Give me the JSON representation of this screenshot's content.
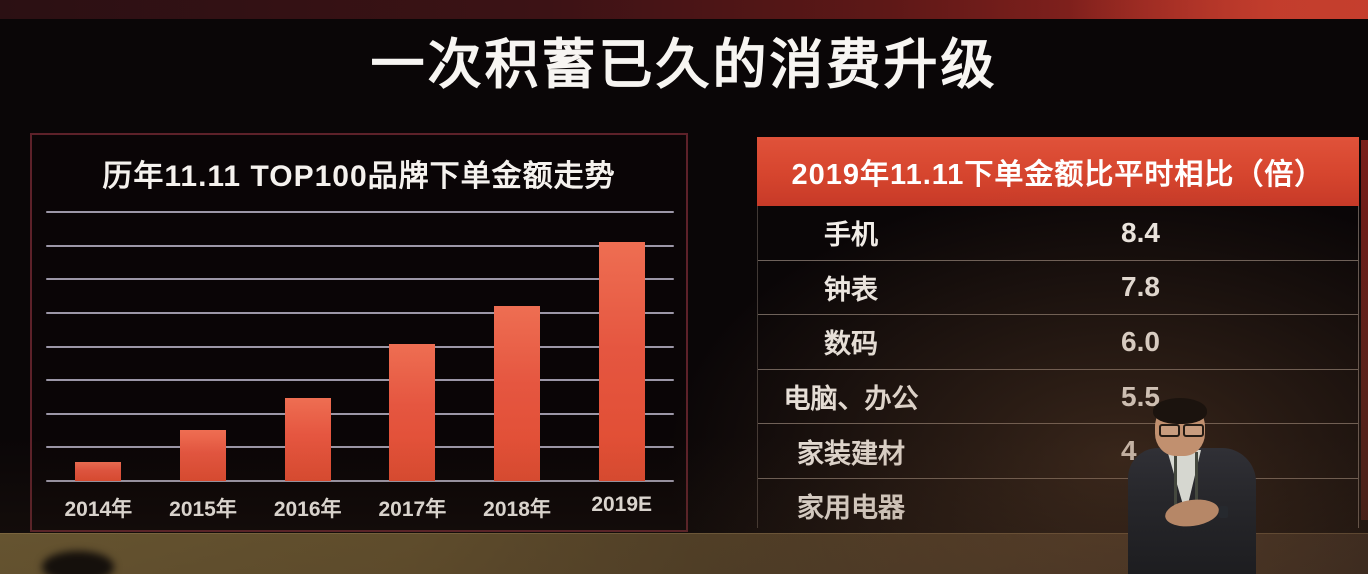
{
  "slide": {
    "title": "一次积蓄已久的消费升级"
  },
  "chart_data": [
    {
      "type": "bar",
      "title": "历年11.11 TOP100品牌下单金额走势",
      "categories": [
        "2014年",
        "2015年",
        "2016年",
        "2017年",
        "2018年",
        "2019E"
      ],
      "values": [
        7,
        19,
        31,
        51,
        65,
        89
      ],
      "xlabel": "",
      "ylabel": "",
      "ylim": [
        0,
        100
      ],
      "yaxis_labels_shown": false,
      "grid": "horizontal",
      "gridline_count": 9,
      "bar_color": "#e65640"
    },
    {
      "type": "table",
      "title": "2019年11.11下单金额比平时相比（倍）",
      "rows": [
        [
          "手机",
          "8.4"
        ],
        [
          "钟表",
          "7.8"
        ],
        [
          "数码",
          "6.0"
        ],
        [
          "电脑、办公",
          "5.5"
        ],
        [
          "家装建材",
          "4"
        ],
        [
          "家用电器",
          ""
        ]
      ],
      "note": "last two values partially or fully occluded by presenter standing in front of screen"
    }
  ],
  "colors": {
    "accent_red": "#d6452e",
    "bar_red": "#e65640",
    "gridline": "#b6b2c4",
    "panel_border": "#5d2129",
    "title_text": "#f7f5f2"
  }
}
